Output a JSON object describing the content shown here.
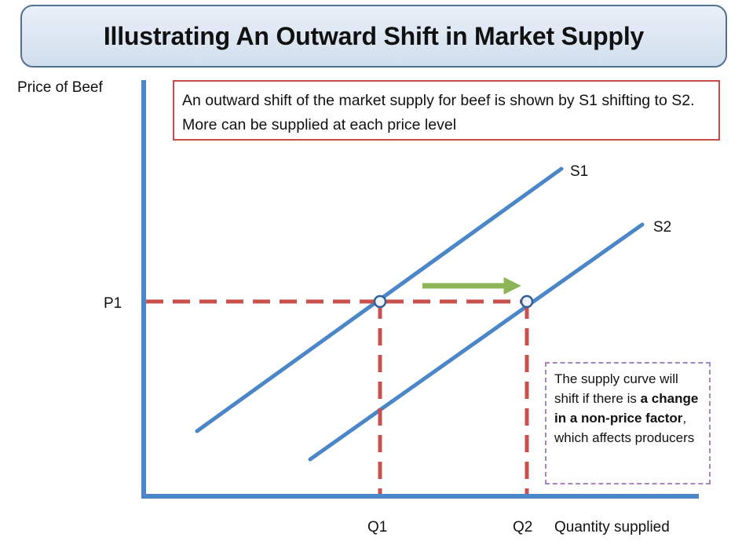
{
  "title": "Illustrating An Outward Shift in Market Supply",
  "note_top": "An outward shift of the market supply for beef is shown by S1 shifting to S2. More can be supplied at each price level",
  "note_side": {
    "part1": "The supply curve will shift if there is ",
    "bold": "a change in a non-price factor",
    "part2": ", which affects producers"
  },
  "axes": {
    "y_label": "Price of Beef",
    "x_label": "Quantity supplied"
  },
  "labels": {
    "s1": "S1",
    "s2": "S2",
    "p1": "P1",
    "q1": "Q1",
    "q2": "Q2"
  },
  "colors": {
    "axis": "#4a86c8",
    "curve": "#4a86c8",
    "guide": "#c9514d",
    "arrow": "#8db455",
    "point_fill": "#eef3fa"
  }
}
